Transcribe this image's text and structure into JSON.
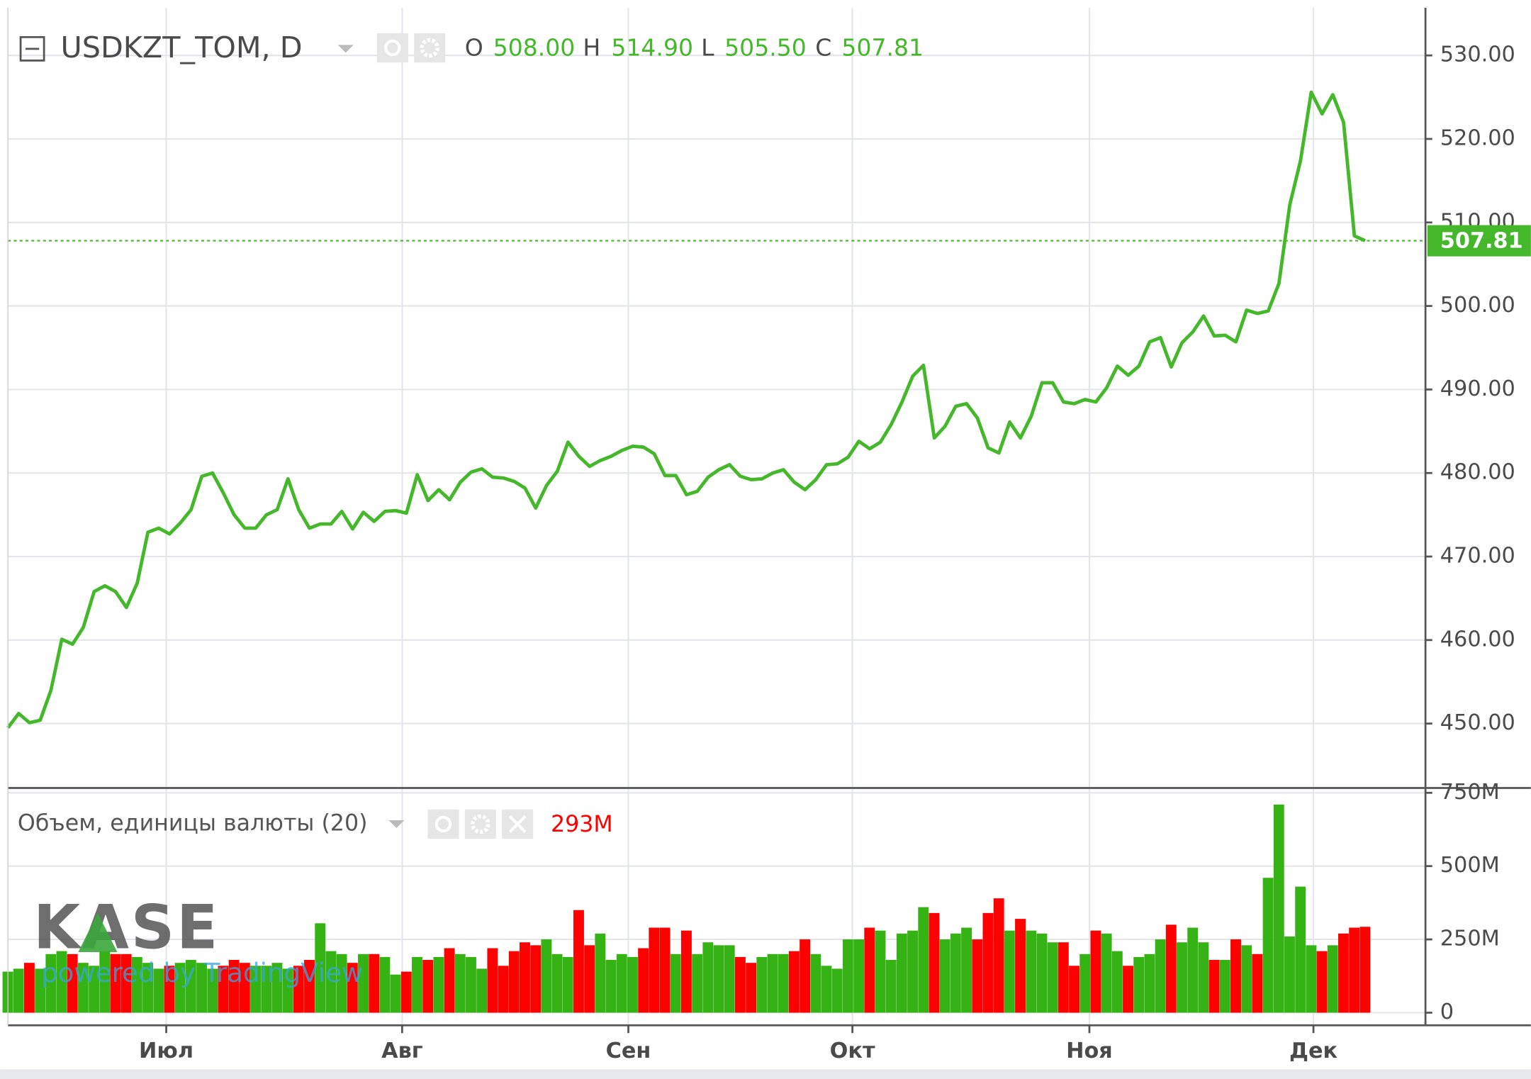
{
  "chart_data": [
    {
      "type": "line",
      "legend": {
        "symbol": "USDKZT_TOM, D",
        "ohlc": {
          "labels": [
            "O",
            "H",
            "L",
            "C"
          ],
          "values": [
            "508.00",
            "514.90",
            "505.50",
            "507.81"
          ]
        }
      },
      "color": "#44b82a",
      "values": [
        449.5,
        451.2,
        450.1,
        450.4,
        454.0,
        460.1,
        459.5,
        461.5,
        465.8,
        466.5,
        465.8,
        463.9,
        466.8,
        472.9,
        473.4,
        472.7,
        474.0,
        475.6,
        479.6,
        480.0,
        477.6,
        475.0,
        473.4,
        473.4,
        475.0,
        475.6,
        479.3,
        475.6,
        473.4,
        473.9,
        473.9,
        475.4,
        473.3,
        475.3,
        474.2,
        475.4,
        475.5,
        475.2,
        479.8,
        476.7,
        478.0,
        476.8,
        478.9,
        480.1,
        480.5,
        479.5,
        479.4,
        479.0,
        478.2,
        475.8,
        478.5,
        480.2,
        483.7,
        482.0,
        480.8,
        481.5,
        482.0,
        482.7,
        483.2,
        483.1,
        482.3,
        479.7,
        479.7,
        477.4,
        477.8,
        479.5,
        480.4,
        481.0,
        479.6,
        479.2,
        479.3,
        480.0,
        480.4,
        478.9,
        478.0,
        479.2,
        481.0,
        481.1,
        481.9,
        483.8,
        482.9,
        483.7,
        485.8,
        488.5,
        491.6,
        492.9,
        484.2,
        485.6,
        488.0,
        488.3,
        486.6,
        483.0,
        482.4,
        486.1,
        484.2,
        486.8,
        490.8,
        490.8,
        488.5,
        488.3,
        488.8,
        488.5,
        490.2,
        492.8,
        491.7,
        492.8,
        495.7,
        496.2,
        492.7,
        495.6,
        496.9,
        498.8,
        496.4,
        496.5,
        495.7,
        499.5,
        499.1,
        499.4,
        502.7,
        512.1,
        517.4,
        525.6,
        523.0,
        525.3,
        522.0,
        508.4,
        507.81
      ],
      "xlim": [
        0,
        131.6
      ],
      "xticks": [
        {
          "value": 14.7,
          "label": "Июл"
        },
        {
          "value": 36.6,
          "label": "Авг"
        },
        {
          "value": 57.6,
          "label": "Сен"
        },
        {
          "value": 78.4,
          "label": "Окт"
        },
        {
          "value": 100.4,
          "label": "Ноя"
        },
        {
          "value": 121.2,
          "label": "Дек"
        }
      ],
      "ylim": [
        442.4,
        535.7
      ],
      "yticks": [
        {
          "value": 450,
          "label": "450.00"
        },
        {
          "value": 460,
          "label": "460.00"
        },
        {
          "value": 470,
          "label": "470.00"
        },
        {
          "value": 480,
          "label": "480.00"
        },
        {
          "value": 490,
          "label": "490.00"
        },
        {
          "value": 500,
          "label": "500.00"
        },
        {
          "value": 510,
          "label": "510.00"
        },
        {
          "value": 520,
          "label": "520.00"
        },
        {
          "value": 530,
          "label": "530.00"
        }
      ],
      "grid": true
    },
    {
      "type": "bar",
      "title": "Объем, единицы валюты (20)",
      "legend_value": "293M",
      "up_color": "#36b314",
      "down_color": "#ff0000",
      "values": [
        140,
        150,
        170,
        150,
        200,
        210,
        200,
        170,
        160,
        210,
        200,
        200,
        190,
        170,
        150,
        160,
        170,
        180,
        170,
        150,
        160,
        180,
        170,
        160,
        160,
        170,
        150,
        160,
        180,
        305,
        210,
        200,
        170,
        200,
        200,
        190,
        130,
        140,
        190,
        180,
        190,
        220,
        200,
        190,
        150,
        220,
        160,
        210,
        240,
        230,
        250,
        200,
        190,
        350,
        230,
        270,
        180,
        200,
        190,
        220,
        290,
        290,
        200,
        280,
        200,
        240,
        230,
        230,
        190,
        170,
        190,
        200,
        200,
        210,
        250,
        200,
        160,
        150,
        250,
        250,
        290,
        280,
        180,
        270,
        280,
        360,
        340,
        250,
        270,
        290,
        250,
        340,
        390,
        280,
        320,
        280,
        270,
        240,
        240,
        160,
        200,
        280,
        270,
        210,
        160,
        190,
        200,
        250,
        300,
        240,
        290,
        240,
        180,
        180,
        250,
        230,
        200,
        460,
        710,
        260,
        430,
        230,
        210,
        230,
        270,
        290,
        293
      ],
      "ylim": [
        -43,
        763
      ],
      "yticks": [
        0,
        {
          "value": 250,
          "label": "250M"
        },
        {
          "value": 500,
          "label": "500M"
        },
        {
          "value": 750,
          "label": "750M"
        }
      ],
      "grid": true
    }
  ],
  "watermark": {
    "logo": "KASE",
    "credit": "powered by TradingView"
  }
}
